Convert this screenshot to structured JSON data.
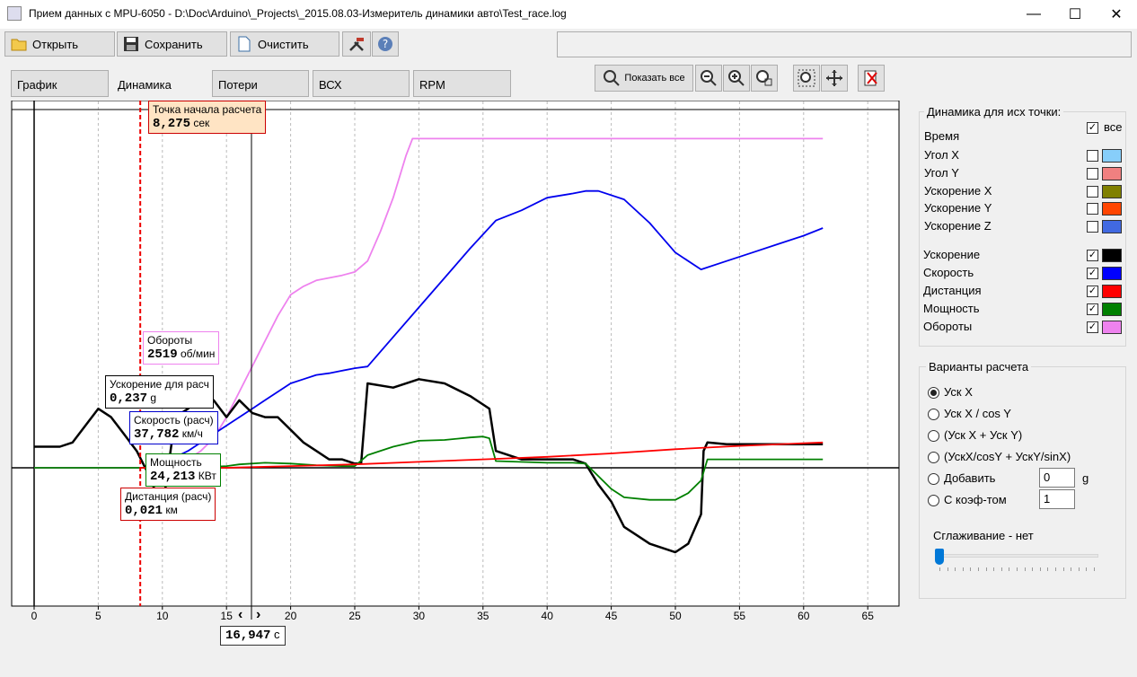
{
  "window": {
    "title": "Прием данных с MPU-6050 - D:\\Doc\\Arduino\\_Projects\\_2015.08.03-Измеритель динамики авто\\Test_race.log",
    "minimize": "—",
    "maximize": "☐",
    "close": "✕"
  },
  "toolbar": {
    "open_label": "Открыть",
    "save_label": "Сохранить",
    "clear_label": "Очистить"
  },
  "tabs": [
    "График",
    "Динамика",
    "Потери",
    "ВСХ",
    "RPM"
  ],
  "view": {
    "show_all_label": "Показать все"
  },
  "chart": {
    "x_ticks": [
      "0",
      "5",
      "10",
      "15",
      "20",
      "25",
      "30",
      "35",
      "40",
      "45",
      "50",
      "55",
      "60",
      "65"
    ],
    "cursor_value": "16,947",
    "cursor_unit": "с",
    "start_label": {
      "title": "Точка начала расчета",
      "value": "8,275",
      "unit": "сек"
    },
    "labels": {
      "rpm": {
        "title": "Обороты",
        "value": "2519",
        "unit": "об/мин"
      },
      "accel": {
        "title": "Ускорение для расч",
        "value": "0,237",
        "unit": "g"
      },
      "speed": {
        "title": "Скорость (расч)",
        "value": "37,782",
        "unit": "км/ч"
      },
      "power": {
        "title": "Мощность",
        "value": "24,213",
        "unit": "КВт"
      },
      "distance": {
        "title": "Дистанция (расч)",
        "value": "0,021",
        "unit": "км"
      }
    }
  },
  "chart_data": {
    "type": "line",
    "x_range": [
      -1.5,
      67.5
    ],
    "cursor_x": 16.947,
    "start_x": 8.275,
    "grid": true,
    "x_ticks": [
      0,
      5,
      10,
      15,
      20,
      25,
      30,
      35,
      40,
      45,
      50,
      55,
      60,
      65
    ],
    "series": [
      {
        "name": "Обороты",
        "color": "#ee82ee",
        "x": [
          0,
          8,
          9,
          10,
          11,
          12,
          13,
          14,
          15,
          16,
          17,
          18,
          19,
          20,
          21,
          22,
          23,
          24,
          25,
          26,
          27,
          28,
          29,
          29.5,
          30,
          35,
          40,
          45,
          50,
          55,
          61.5
        ],
        "y": [
          0,
          0,
          0,
          0,
          5,
          10,
          20,
          35,
          60,
          90,
          120,
          150,
          180,
          205,
          215,
          222,
          225,
          228,
          232,
          245,
          280,
          320,
          370,
          390,
          390,
          390,
          390,
          390,
          390,
          390,
          390
        ]
      },
      {
        "name": "Скорость",
        "color": "#0000ee",
        "x": [
          8.5,
          10,
          12,
          14,
          15,
          16,
          17,
          18,
          19,
          20,
          21,
          22,
          23,
          24,
          25,
          26,
          28,
          30,
          32,
          34,
          36,
          38,
          40,
          42,
          43,
          44,
          46,
          48,
          50,
          52,
          54,
          56,
          58,
          60,
          61.5
        ],
        "y": [
          0,
          5,
          20,
          40,
          50,
          60,
          70,
          80,
          90,
          100,
          105,
          110,
          112,
          115,
          118,
          120,
          155,
          190,
          225,
          260,
          293,
          305,
          320,
          325,
          328,
          328,
          318,
          290,
          255,
          235,
          245,
          255,
          265,
          275,
          284
        ]
      },
      {
        "name": "Ускорение",
        "color": "#000000",
        "x": [
          0,
          2,
          3,
          4,
          5,
          6,
          7,
          8,
          9,
          10,
          11,
          12,
          13,
          14,
          15,
          16,
          17,
          18,
          19,
          20,
          21,
          22,
          23,
          24,
          25,
          25.5,
          26,
          28,
          30,
          32,
          34,
          35,
          35.5,
          36,
          38,
          40,
          42,
          43,
          44,
          45,
          46,
          47,
          48,
          49,
          50,
          51,
          52,
          52.2,
          52.5,
          54,
          56,
          58,
          61.5
        ],
        "y": [
          25,
          25,
          30,
          50,
          70,
          60,
          40,
          20,
          -10,
          -50,
          60,
          70,
          90,
          80,
          60,
          80,
          65,
          60,
          60,
          45,
          30,
          20,
          10,
          10,
          5,
          5,
          100,
          95,
          105,
          100,
          85,
          75,
          70,
          20,
          10,
          10,
          10,
          5,
          -20,
          -40,
          -70,
          -80,
          -90,
          -95,
          -100,
          -90,
          -55,
          20,
          30,
          28,
          28,
          28,
          28
        ]
      },
      {
        "name": "Мощность",
        "color": "#008000",
        "x": [
          0,
          8,
          9,
          10,
          12,
          15,
          16,
          18,
          20,
          22,
          24,
          25,
          26,
          28,
          30,
          32,
          34,
          35,
          35.5,
          36,
          40,
          42,
          43,
          44,
          45,
          46,
          48,
          50,
          51,
          52,
          52.5,
          53,
          56,
          61.5
        ],
        "y": [
          0,
          0,
          0,
          0,
          0,
          2,
          4,
          6,
          5,
          3,
          2,
          2,
          15,
          25,
          32,
          33,
          36,
          37,
          35,
          8,
          6,
          6,
          5,
          -10,
          -25,
          -35,
          -38,
          -38,
          -30,
          -15,
          10,
          10,
          10,
          10
        ]
      },
      {
        "name": "Дистанция",
        "color": "#ff0000",
        "x": [
          8.3,
          15,
          20,
          25,
          30,
          35,
          40,
          45,
          50,
          55,
          61.5
        ],
        "y": [
          0,
          0,
          2,
          4,
          7,
          10,
          13,
          17,
          22,
          26,
          30
        ]
      }
    ]
  },
  "panel": {
    "group_title": "Динамика для исх точки:",
    "all_label": "все",
    "time_label": "Время",
    "sensors": [
      {
        "label": "Угол X",
        "checked": false,
        "color": "#87cefa"
      },
      {
        "label": "Угол Y",
        "checked": false,
        "color": "#f08080"
      },
      {
        "label": "Ускорение X",
        "checked": false,
        "color": "#808000"
      },
      {
        "label": "Ускорение Y",
        "checked": false,
        "color": "#ff4500"
      },
      {
        "label": "Ускорение Z",
        "checked": false,
        "color": "#4169e1"
      }
    ],
    "calc": [
      {
        "label": "Ускорение",
        "checked": true,
        "color": "#000000"
      },
      {
        "label": "Скорость",
        "checked": true,
        "color": "#0000ff"
      },
      {
        "label": "Дистанция",
        "checked": true,
        "color": "#ff0000"
      },
      {
        "label": "Мощность",
        "checked": true,
        "color": "#008000"
      },
      {
        "label": "Обороты",
        "checked": true,
        "color": "#ee82ee"
      }
    ],
    "variants_title": "Варианты расчета",
    "variants": [
      {
        "label": "Уск X",
        "selected": true
      },
      {
        "label": "Уск X / cos Y",
        "selected": false
      },
      {
        "label": "(Уск X + Уск Y)",
        "selected": false
      },
      {
        "label": "(УскX/cosY + УскY/sinX)",
        "selected": false
      },
      {
        "label": "Добавить",
        "selected": false
      },
      {
        "label": "С коэф-том",
        "selected": false
      }
    ],
    "add_value": "0",
    "add_unit": "g",
    "coef_value": "1",
    "smoothing_label": "Сглаживание - нет",
    "smoothing_level": 0
  }
}
